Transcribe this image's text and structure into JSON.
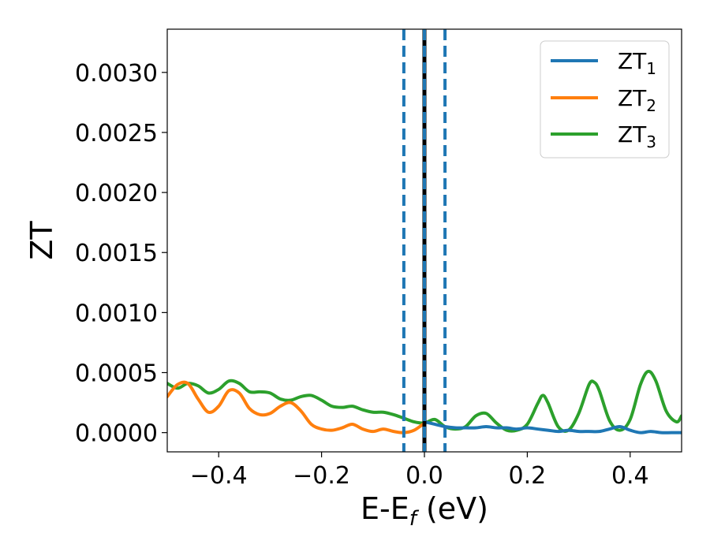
{
  "chart_data": {
    "type": "line",
    "title": "",
    "xlabel": "E-E",
    "xlabel_sub": "f",
    "xlabel_unit": " (eV)",
    "ylabel": "ZT",
    "xlim": [
      -0.5,
      0.5
    ],
    "ylim": [
      -0.00016,
      0.00336
    ],
    "grid": false,
    "legend_position": "upper right",
    "x_ticks": [
      -0.4,
      -0.2,
      0.0,
      0.2,
      0.4
    ],
    "x_tick_labels": [
      "−0.4",
      "−0.2",
      "0.0",
      "0.2",
      "0.4"
    ],
    "y_ticks": [
      0.0,
      0.0005,
      0.001,
      0.0015,
      0.002,
      0.0025,
      0.003
    ],
    "y_tick_labels": [
      "0.0000",
      "0.0005",
      "0.0010",
      "0.0015",
      "0.0020",
      "0.0025",
      "0.0030"
    ],
    "vlines": [
      {
        "x": -0.04,
        "style": "dashed",
        "color": "#1f77b4"
      },
      {
        "x": 0.0,
        "style": "solid",
        "color": "#000000"
      },
      {
        "x": 0.0,
        "style": "dashed",
        "color": "#1f77b4"
      },
      {
        "x": 0.04,
        "style": "dashed",
        "color": "#1f77b4"
      }
    ],
    "series": [
      {
        "name": "ZT",
        "name_sub": "1",
        "color": "#1f77b4",
        "x": [
          0.0,
          0.02,
          0.04,
          0.06,
          0.08,
          0.1,
          0.12,
          0.14,
          0.16,
          0.18,
          0.2,
          0.22,
          0.24,
          0.26,
          0.28,
          0.3,
          0.32,
          0.34,
          0.36,
          0.38,
          0.4,
          0.42,
          0.44,
          0.46,
          0.48,
          0.5
        ],
        "y": [
          9e-05,
          7e-05,
          5e-05,
          4e-05,
          4e-05,
          4e-05,
          5e-05,
          4e-05,
          4e-05,
          3e-05,
          4e-05,
          3e-05,
          2e-05,
          1e-05,
          2e-05,
          1e-05,
          1e-05,
          1e-05,
          3e-05,
          5e-05,
          2e-05,
          0.0,
          1e-05,
          0.0,
          0.0,
          0.0
        ]
      },
      {
        "name": "ZT",
        "name_sub": "2",
        "color": "#ff7f0e",
        "x": [
          -0.5,
          -0.48,
          -0.46,
          -0.44,
          -0.42,
          -0.4,
          -0.38,
          -0.36,
          -0.34,
          -0.32,
          -0.3,
          -0.28,
          -0.26,
          -0.24,
          -0.22,
          -0.2,
          -0.18,
          -0.16,
          -0.14,
          -0.12,
          -0.1,
          -0.08,
          -0.06,
          -0.04,
          -0.02,
          0.0
        ],
        "y": [
          0.0003,
          0.0004,
          0.00041,
          0.00028,
          0.00017,
          0.00022,
          0.00035,
          0.00033,
          0.0002,
          0.00015,
          0.00016,
          0.00022,
          0.00025,
          0.00018,
          7e-05,
          3e-05,
          2e-05,
          4e-05,
          7e-05,
          3e-05,
          1e-05,
          3e-05,
          1e-05,
          0.0,
          2e-05,
          8e-05
        ]
      },
      {
        "name": "ZT",
        "name_sub": "3",
        "color": "#2ca02c",
        "x": [
          -0.5,
          -0.48,
          -0.46,
          -0.44,
          -0.42,
          -0.4,
          -0.38,
          -0.36,
          -0.34,
          -0.32,
          -0.3,
          -0.28,
          -0.26,
          -0.24,
          -0.22,
          -0.2,
          -0.18,
          -0.16,
          -0.14,
          -0.12,
          -0.1,
          -0.08,
          -0.06,
          -0.04,
          -0.02,
          0.0,
          0.02,
          0.04,
          0.06,
          0.08,
          0.1,
          0.12,
          0.14,
          0.16,
          0.18,
          0.2,
          0.22,
          0.23,
          0.24,
          0.26,
          0.28,
          0.3,
          0.32,
          0.33,
          0.34,
          0.36,
          0.38,
          0.4,
          0.42,
          0.435,
          0.45,
          0.47,
          0.49,
          0.5
        ],
        "y": [
          0.00041,
          0.00037,
          0.00041,
          0.00039,
          0.00033,
          0.00036,
          0.00043,
          0.00041,
          0.00034,
          0.00034,
          0.00033,
          0.00028,
          0.00027,
          0.0003,
          0.00031,
          0.00027,
          0.00022,
          0.00021,
          0.00022,
          0.00019,
          0.00017,
          0.00017,
          0.00015,
          0.00012,
          9e-05,
          8e-05,
          0.00011,
          5e-05,
          3e-05,
          5e-05,
          0.00014,
          0.00016,
          8e-05,
          2e-05,
          2e-05,
          7e-05,
          0.00024,
          0.00031,
          0.00025,
          5e-05,
          2e-05,
          0.00016,
          0.0004,
          0.00042,
          0.00035,
          0.0001,
          2e-05,
          0.00011,
          0.0004,
          0.00051,
          0.00043,
          0.00018,
          9e-05,
          0.00014
        ]
      }
    ]
  }
}
